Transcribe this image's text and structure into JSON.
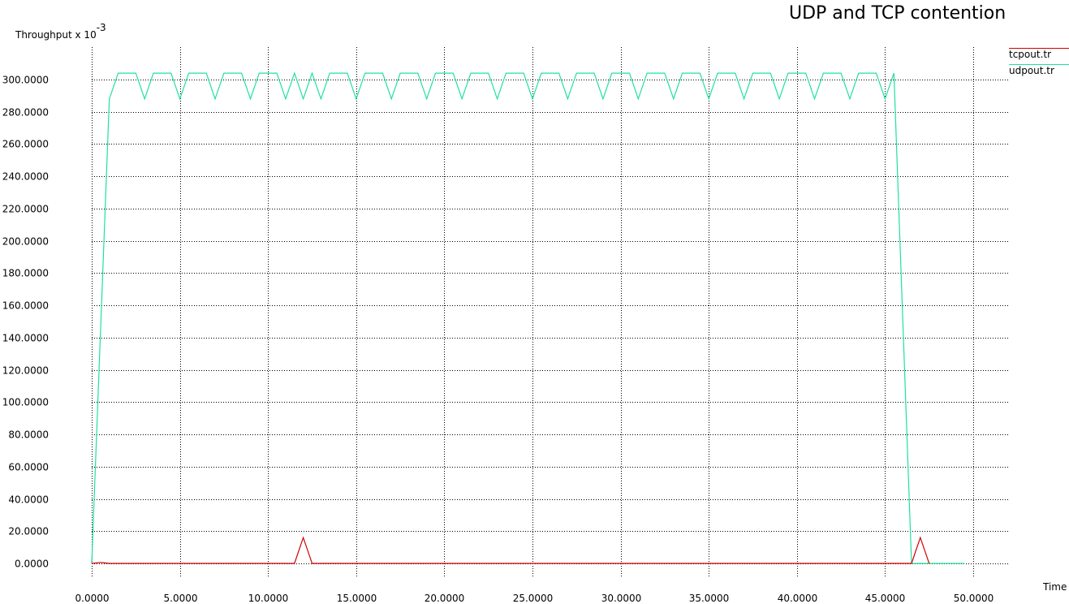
{
  "chart_data": {
    "type": "line",
    "title": "UDP and TCP contention",
    "ylabel": "Throughput x 10",
    "ylabel_exponent": "-3",
    "xlabel": "Time",
    "grid": true,
    "legend_placement": "top-right",
    "xlim": [
      0,
      50
    ],
    "ylim": [
      0,
      300
    ],
    "x_ticks": [
      0,
      5,
      10,
      15,
      20,
      25,
      30,
      35,
      40,
      45,
      50
    ],
    "x_tick_labels": [
      "0.0000",
      "5.0000",
      "10.0000",
      "15.0000",
      "20.0000",
      "25.0000",
      "30.0000",
      "35.0000",
      "40.0000",
      "45.0000",
      "50.0000"
    ],
    "y_ticks": [
      0,
      20,
      40,
      60,
      80,
      100,
      120,
      140,
      160,
      180,
      200,
      220,
      240,
      260,
      280,
      300
    ],
    "y_tick_labels": [
      "0.0000",
      "20.0000",
      "40.0000",
      "60.0000",
      "80.0000",
      "100.0000",
      "120.0000",
      "140.0000",
      "160.0000",
      "180.0000",
      "200.0000",
      "220.0000",
      "240.0000",
      "260.0000",
      "280.0000",
      "300.0000"
    ],
    "series": [
      {
        "name": "tcpout.tr",
        "color": "#d00000",
        "points": [
          [
            0,
            0
          ],
          [
            0.5,
            0.6
          ],
          [
            1,
            0
          ],
          [
            11.5,
            0
          ],
          [
            12,
            16
          ],
          [
            12.5,
            0
          ],
          [
            46.5,
            0
          ],
          [
            47,
            16
          ],
          [
            47.5,
            0
          ]
        ]
      },
      {
        "name": "udpout.tr",
        "color": "#20e0a0",
        "points": [
          [
            0,
            0
          ],
          [
            1,
            288
          ],
          [
            1.5,
            304
          ],
          [
            2.5,
            304
          ],
          [
            3,
            288
          ],
          [
            3.5,
            304
          ],
          [
            4.5,
            304
          ],
          [
            5,
            288
          ],
          [
            5.5,
            304
          ],
          [
            6.5,
            304
          ],
          [
            7,
            288
          ],
          [
            7.5,
            304
          ],
          [
            8.5,
            304
          ],
          [
            9,
            288
          ],
          [
            9.5,
            304
          ],
          [
            10.5,
            304
          ],
          [
            11,
            288
          ],
          [
            11.5,
            304
          ],
          [
            12,
            288
          ],
          [
            12.5,
            304
          ],
          [
            13,
            288
          ],
          [
            13.5,
            304
          ],
          [
            14.5,
            304
          ],
          [
            15,
            288
          ],
          [
            15.5,
            304
          ],
          [
            16.5,
            304
          ],
          [
            17,
            288
          ],
          [
            17.5,
            304
          ],
          [
            18.5,
            304
          ],
          [
            19,
            288
          ],
          [
            19.5,
            304
          ],
          [
            20.5,
            304
          ],
          [
            21,
            288
          ],
          [
            21.5,
            304
          ],
          [
            22.5,
            304
          ],
          [
            23,
            288
          ],
          [
            23.5,
            304
          ],
          [
            24.5,
            304
          ],
          [
            25,
            288
          ],
          [
            25.5,
            304
          ],
          [
            26.5,
            304
          ],
          [
            27,
            288
          ],
          [
            27.5,
            304
          ],
          [
            28.5,
            304
          ],
          [
            29,
            288
          ],
          [
            29.5,
            304
          ],
          [
            30.5,
            304
          ],
          [
            31,
            288
          ],
          [
            31.5,
            304
          ],
          [
            32.5,
            304
          ],
          [
            33,
            288
          ],
          [
            33.5,
            304
          ],
          [
            34.5,
            304
          ],
          [
            35,
            288
          ],
          [
            35.5,
            304
          ],
          [
            36.5,
            304
          ],
          [
            37,
            288
          ],
          [
            37.5,
            304
          ],
          [
            38.5,
            304
          ],
          [
            39,
            288
          ],
          [
            39.5,
            304
          ],
          [
            40.5,
            304
          ],
          [
            41,
            288
          ],
          [
            41.5,
            304
          ],
          [
            42.5,
            304
          ],
          [
            43,
            288
          ],
          [
            43.5,
            304
          ],
          [
            44.5,
            304
          ],
          [
            45,
            288
          ],
          [
            45.5,
            304
          ],
          [
            46.5,
            0
          ],
          [
            49.5,
            0
          ]
        ]
      }
    ]
  }
}
